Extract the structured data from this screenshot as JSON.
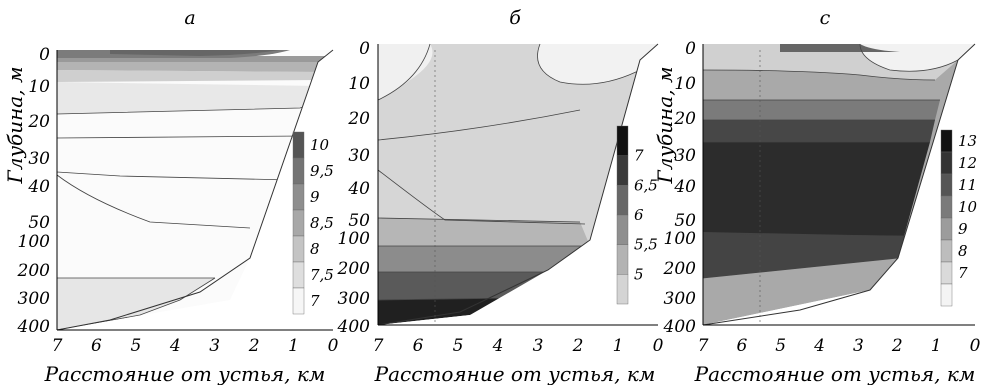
{
  "chart_data": [
    {
      "type": "heatmap",
      "title": "а",
      "xlabel": "Расстояние от устья, км",
      "ylabel": "Глубина, м",
      "x_ticks": [
        "7",
        "6",
        "5",
        "4",
        "3",
        "2",
        "1",
        "0"
      ],
      "y_ticks": [
        "0",
        "10",
        "20",
        "30",
        "40",
        "50",
        "100",
        "200",
        "300",
        "400"
      ],
      "legend_levels": [
        "10",
        "9,5",
        "9",
        "8,5",
        "8",
        "7,5",
        "7"
      ],
      "legend_colors": [
        "#555555",
        "#747474",
        "#8e8e8e",
        "#a8a8a8",
        "#c4c4c4",
        "#dedede",
        "#f6f6f6"
      ]
    },
    {
      "type": "heatmap",
      "title": "б",
      "xlabel": "Расстояние от устья, км",
      "ylabel": "",
      "x_ticks": [
        "7",
        "6",
        "5",
        "4",
        "3",
        "2",
        "1",
        "0"
      ],
      "y_ticks": [
        "0",
        "10",
        "20",
        "30",
        "40",
        "50",
        "100",
        "200",
        "300",
        "400"
      ],
      "legend_levels": [
        "7",
        "6,5",
        "6",
        "5,5",
        "5"
      ],
      "legend_colors": [
        "#111111",
        "#3a3a3a",
        "#686868",
        "#8f8f8f",
        "#b3b3b3",
        "#d4d4d4"
      ]
    },
    {
      "type": "heatmap",
      "title": "с",
      "xlabel": "Расстояние от устья, км",
      "ylabel": "Глубина, м",
      "x_ticks": [
        "7",
        "6",
        "5",
        "4",
        "3",
        "2",
        "1",
        "0"
      ],
      "y_ticks": [
        "0",
        "10",
        "20",
        "30",
        "40",
        "50",
        "100",
        "200",
        "300",
        "400"
      ],
      "legend_levels": [
        "13",
        "12",
        "11",
        "10",
        "9",
        "8",
        "7"
      ],
      "legend_colors": [
        "#111111",
        "#333333",
        "#555555",
        "#7a7a7a",
        "#9c9c9c",
        "#bdbdbd",
        "#dadada",
        "#f4f4f4"
      ]
    }
  ]
}
